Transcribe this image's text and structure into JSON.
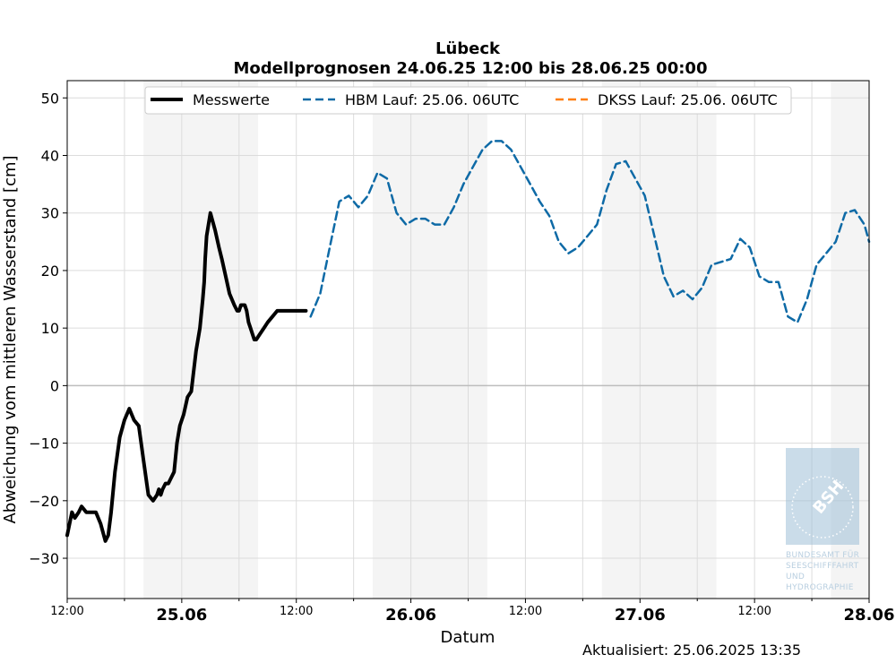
{
  "chart_data": {
    "type": "line",
    "title": "Lübeck",
    "subtitle": "Modellprognosen 24.06.25 12:00 bis 28.06.25 00:00",
    "xlabel": "Datum",
    "ylabel": "Abweichung vom mittleren Wasserstand [cm]",
    "ylim": [
      -37,
      53
    ],
    "yticks": [
      -30,
      -20,
      -10,
      0,
      10,
      20,
      30,
      40,
      50
    ],
    "xlim_hours": [
      0,
      84
    ],
    "xticks": [
      {
        "label": "12:00",
        "h": 0,
        "bold": false
      },
      {
        "label": "25.06",
        "h": 12,
        "bold": true
      },
      {
        "label": "12:00",
        "h": 24,
        "bold": false
      },
      {
        "label": "26.06",
        "h": 36,
        "bold": true
      },
      {
        "label": "12:00",
        "h": 48,
        "bold": false
      },
      {
        "label": "27.06",
        "h": 60,
        "bold": true
      },
      {
        "label": "12:00",
        "h": 72,
        "bold": false
      },
      {
        "label": "28.06",
        "h": 84,
        "bold": true
      }
    ],
    "night_bands_hours": [
      [
        8,
        20
      ],
      [
        32,
        44
      ],
      [
        56,
        68
      ],
      [
        80,
        84
      ]
    ],
    "grid": true,
    "legend_position": "top",
    "series": [
      {
        "name": "Messwerte",
        "color": "#000000",
        "style": "solid",
        "x_hours": [
          0,
          0.5,
          0.8,
          1.2,
          1.5,
          2,
          2.5,
          3,
          3.5,
          4,
          4.3,
          4.6,
          5,
          5.5,
          6,
          6.5,
          7,
          7.5,
          8,
          8.5,
          9,
          9.4,
          9.6,
          9.8,
          10.0,
          10.3,
          10.6,
          10.9,
          11.2,
          11.5,
          11.8,
          12.2,
          12.6,
          13,
          13.5,
          13.9,
          14.2,
          14.35,
          14.45,
          14.6,
          15,
          15.5,
          15.9,
          16.2,
          16.6,
          17,
          17.5,
          17.8,
          18,
          18.2,
          18.4,
          18.6,
          18.8,
          19,
          19.2,
          19.4,
          19.6,
          19.8,
          20.2,
          20.6,
          21,
          21.5,
          22,
          22.5,
          23,
          23.5,
          24,
          24.5,
          25
        ],
        "values": [
          -26,
          -22,
          -23,
          -22,
          -21,
          -22,
          -22,
          -22,
          -24,
          -27,
          -26,
          -22,
          -15,
          -9,
          -6,
          -4,
          -6,
          -7,
          -13,
          -19,
          -20,
          -19,
          -18,
          -19,
          -18,
          -17,
          -17,
          -16,
          -15,
          -10,
          -7,
          -5,
          -2,
          -1,
          6,
          10,
          15,
          18,
          22,
          26,
          30,
          27,
          24,
          22,
          19,
          16,
          14,
          13,
          13,
          14,
          14,
          14,
          13,
          11,
          10,
          9,
          8,
          8,
          9,
          10,
          11,
          12,
          13,
          13,
          13,
          13,
          13,
          13,
          13
        ]
      },
      {
        "name": "HBM Lauf: 25.06. 06UTC",
        "color": "#0e6aa6",
        "style": "dashed",
        "x_hours": [
          25.5,
          26.5,
          27.5,
          28.5,
          29.5,
          30.5,
          31.5,
          32.5,
          33.5,
          34.5,
          35.5,
          36.5,
          37.5,
          38.5,
          39.5,
          40.5,
          41.5,
          42.5,
          43.5,
          44.5,
          45.5,
          46.5,
          47.5,
          48.5,
          49.5,
          50.5,
          51.5,
          52.5,
          53.5,
          54.5,
          55.5,
          56.5,
          57.5,
          58.5,
          59.5,
          60.5,
          61.5,
          62.5,
          63.5,
          64.5,
          65.5,
          66.5,
          67.5,
          68.5,
          69.5,
          70.5,
          71.5,
          72.5,
          73.5,
          74.5,
          75.5,
          76.5,
          77.5,
          78.5,
          79.5,
          80.5,
          81.5,
          82.5,
          83.5,
          84
        ],
        "values": [
          12,
          16,
          24,
          32,
          33,
          31,
          33,
          37,
          36,
          30,
          28,
          29,
          29,
          28,
          28,
          31,
          35,
          38,
          41,
          42.5,
          42.5,
          41,
          38,
          35,
          32,
          29.5,
          25,
          23,
          24,
          26,
          28,
          34,
          38.5,
          39,
          36,
          33,
          26,
          19,
          15.5,
          16.5,
          15,
          17,
          21,
          21.5,
          22,
          25.5,
          24,
          19,
          18,
          18,
          12,
          11,
          15,
          21,
          23,
          25,
          30,
          30.5,
          28,
          25
        ]
      },
      {
        "name": "DKSS Lauf: 25.06. 06UTC",
        "color": "#ff7f0e",
        "style": "dashed",
        "x_hours": [],
        "values": []
      }
    ]
  },
  "updated_text": "Aktualisiert: 25.06.2025 13:35",
  "logo": {
    "name": "bsh-logo",
    "mark": "BSH",
    "lines": [
      "BUNDESAMT FÜR",
      "SEESCHIFFFAHRT",
      "UND",
      "HYDROGRAPHIE"
    ],
    "color": "#9ebfd7"
  }
}
